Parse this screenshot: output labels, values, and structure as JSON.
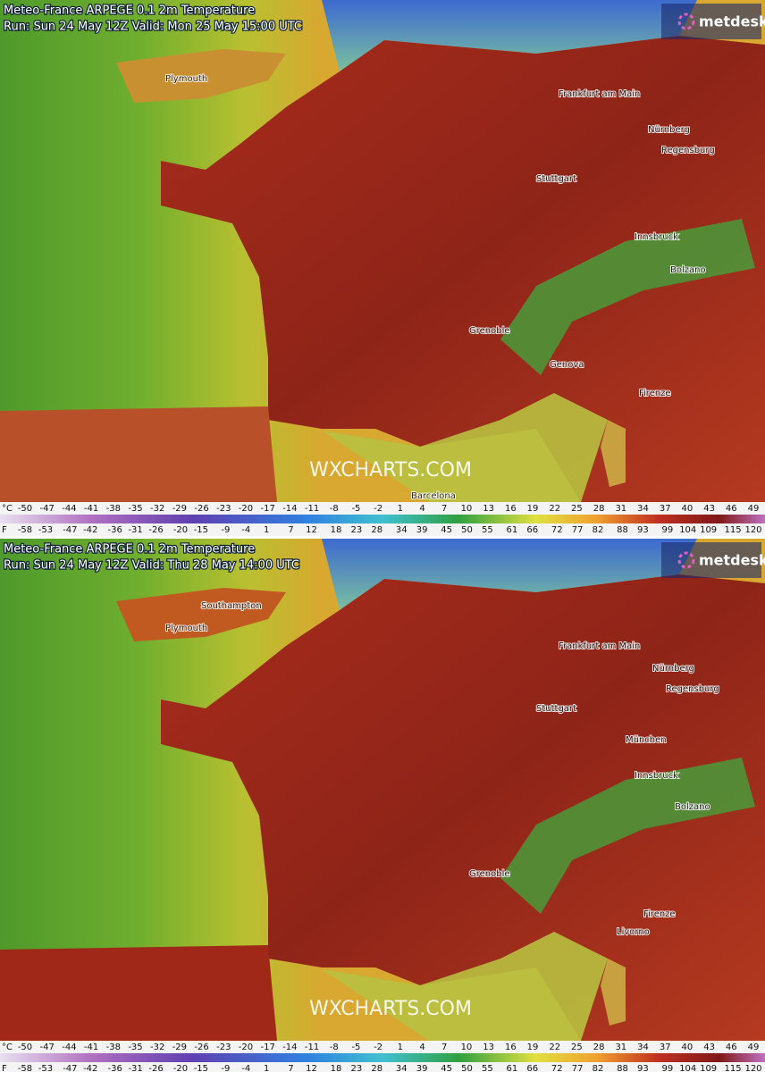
{
  "panels": [
    {
      "title": "Meteo-France ARPEGE 0.1 2m Temperature",
      "run": "Run: Sun 24 May 12Z Valid: Mon 25 May 15:00 UTC",
      "logo": "metdesk",
      "watermark": "WXCHARTS.COM",
      "places": [
        "Plymouth",
        "Frankfurt am Main",
        "Nürnberg",
        "Regensburg",
        "Stuttgart",
        "Innsbruck",
        "Bolzano",
        "Grenoble",
        "Genova",
        "Firenze",
        "Barcelona"
      ]
    },
    {
      "title": "Meteo-France ARPEGE 0.1 2m Temperature",
      "run": "Run: Sun 24 May 12Z Valid: Thu 28 May 14:00 UTC",
      "logo": "metdesk",
      "watermark": "WXCHARTS.COM",
      "places": [
        "Southampton",
        "Plymouth",
        "Frankfurt am Main",
        "Nürnberg",
        "Regensburg",
        "Stuttgart",
        "München",
        "Innsbruck",
        "Bolzano",
        "Grenoble",
        "Firenze",
        "Livorno"
      ]
    }
  ],
  "scale": {
    "celsius_unit": "°C",
    "fahrenheit_unit": "F",
    "celsius": [
      -50,
      -47,
      -44,
      -41,
      -38,
      -35,
      -32,
      -29,
      -26,
      -23,
      -20,
      -17,
      -14,
      -11,
      -8,
      -5,
      -2,
      1,
      4,
      7,
      10,
      13,
      16,
      19,
      22,
      25,
      28,
      31,
      34,
      37,
      40,
      43,
      46,
      49
    ],
    "fahrenheit": [
      -58,
      -53,
      -47,
      -42,
      -36,
      -31,
      -26,
      -20,
      -15,
      -9,
      -4,
      1,
      7,
      12,
      18,
      23,
      28,
      34,
      39,
      45,
      50,
      55,
      61,
      66,
      72,
      77,
      82,
      88,
      93,
      99,
      104,
      109,
      115,
      120
    ]
  }
}
